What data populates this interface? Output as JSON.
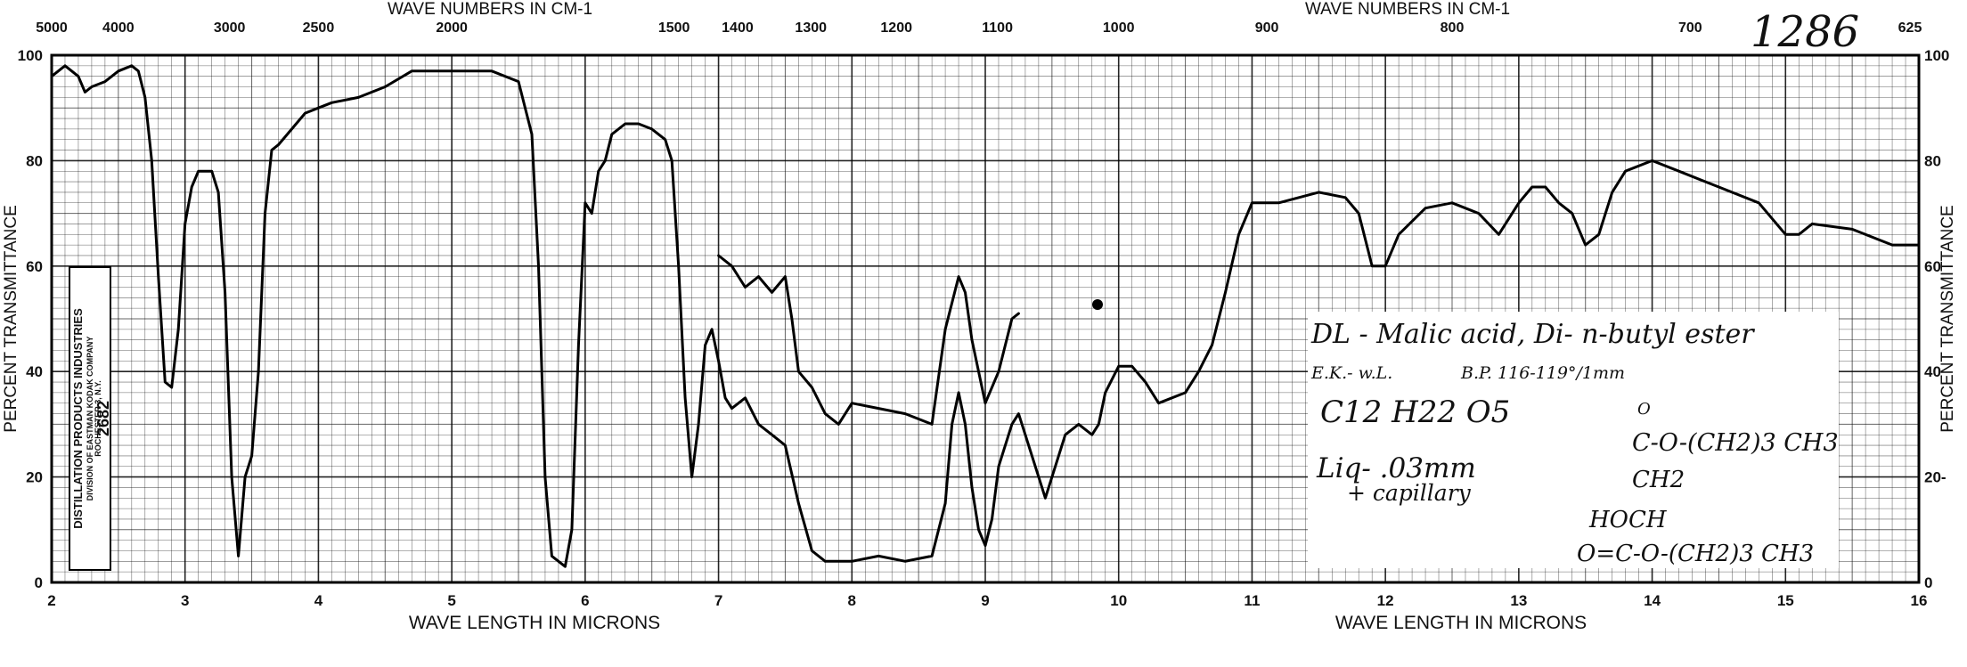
{
  "page": {
    "spectrum_number": "1286"
  },
  "axes": {
    "top_label_left": "WAVE NUMBERS IN CM-1",
    "top_label_right": "WAVE NUMBERS IN CM-1",
    "bottom_label_left": "WAVE LENGTH IN MICRONS",
    "bottom_label_right": "WAVE LENGTH IN MICRONS",
    "left_label": "PERCENT TRANSMITTANCE",
    "right_label": "PERCENT TRANSMITTANCE",
    "wavenumber_ticks": [
      "5000",
      "4000",
      "3000",
      "2500",
      "2000",
      "1500",
      "1400",
      "1300",
      "1200",
      "1100",
      "1000",
      "900",
      "800",
      "700",
      "625"
    ],
    "wavenumber_values": [
      5000,
      4000,
      3000,
      2500,
      2000,
      1500,
      1400,
      1300,
      1200,
      1100,
      1000,
      900,
      800,
      700,
      625
    ],
    "micron_ticks": [
      "2",
      "3",
      "4",
      "5",
      "6",
      "7",
      "8",
      "9",
      "10",
      "11",
      "12",
      "13",
      "14",
      "15",
      "16"
    ],
    "left_y_ticks": [
      "100",
      "80",
      "60",
      "40",
      "20",
      "0"
    ],
    "right_y_ticks": [
      "100",
      "80",
      "60",
      "40",
      "20-",
      "0"
    ]
  },
  "stamp": {
    "company": "DISTILLATION PRODUCTS INDUSTRIES",
    "division": "DIVISION OF EASTMAN KODAK COMPANY",
    "city": "ROCHESTER 3, N.Y.",
    "number": "2682"
  },
  "annotation": {
    "name": "DL - Malic acid, Di- n-butyl ester",
    "source": "E.K.- w.L.",
    "bp": "B.P. 116-119°/1mm",
    "formula": "C12 H22 O5",
    "sample_line1": "Liq- .03mm",
    "sample_line2": "+ capillary",
    "struct_1": "O",
    "struct_2": "C-O-(CH2)3 CH3",
    "struct_3": "CH2",
    "struct_4": "HOCH",
    "struct_5": "O=C-O-(CH2)3 CH3"
  },
  "chart_data": {
    "type": "line",
    "xlabel": "WAVE LENGTH IN MICRONS",
    "ylabel": "PERCENT TRANSMITTANCE",
    "xlim": [
      2,
      16
    ],
    "ylim": [
      0,
      100
    ],
    "grid": true,
    "series": [
      {
        "points": [
          [
            2.0,
            96
          ],
          [
            2.1,
            98
          ],
          [
            2.2,
            96
          ],
          [
            2.25,
            93
          ],
          [
            2.3,
            94
          ],
          [
            2.4,
            95
          ],
          [
            2.5,
            97
          ],
          [
            2.6,
            98
          ],
          [
            2.65,
            97
          ],
          [
            2.7,
            92
          ],
          [
            2.75,
            80
          ],
          [
            2.8,
            58
          ],
          [
            2.85,
            38
          ],
          [
            2.9,
            37
          ],
          [
            2.95,
            48
          ],
          [
            3.0,
            68
          ],
          [
            3.05,
            75
          ],
          [
            3.1,
            78
          ],
          [
            3.2,
            78
          ],
          [
            3.25,
            74
          ],
          [
            3.3,
            55
          ],
          [
            3.35,
            20
          ],
          [
            3.4,
            5
          ],
          [
            3.45,
            20
          ],
          [
            3.5,
            24
          ],
          [
            3.55,
            40
          ],
          [
            3.6,
            70
          ],
          [
            3.65,
            82
          ],
          [
            3.7,
            83
          ],
          [
            3.8,
            86
          ],
          [
            3.9,
            89
          ],
          [
            4.0,
            90
          ],
          [
            4.1,
            91
          ],
          [
            4.3,
            92
          ],
          [
            4.5,
            94
          ],
          [
            4.7,
            97
          ],
          [
            5.0,
            97
          ],
          [
            5.3,
            97
          ],
          [
            5.5,
            95
          ],
          [
            5.6,
            85
          ],
          [
            5.65,
            60
          ],
          [
            5.7,
            20
          ],
          [
            5.75,
            5
          ],
          [
            5.85,
            3
          ],
          [
            5.9,
            10
          ],
          [
            5.95,
            45
          ],
          [
            6.0,
            72
          ],
          [
            6.05,
            70
          ],
          [
            6.1,
            78
          ],
          [
            6.15,
            80
          ],
          [
            6.2,
            85
          ],
          [
            6.3,
            87
          ],
          [
            6.4,
            87
          ],
          [
            6.5,
            86
          ],
          [
            6.6,
            84
          ],
          [
            6.65,
            80
          ],
          [
            6.7,
            60
          ],
          [
            6.75,
            35
          ],
          [
            6.8,
            20
          ],
          [
            6.85,
            30
          ],
          [
            6.9,
            45
          ],
          [
            6.95,
            48
          ],
          [
            7.0,
            42
          ],
          [
            7.05,
            35
          ],
          [
            7.1,
            33
          ],
          [
            7.2,
            35
          ],
          [
            7.3,
            30
          ],
          [
            7.4,
            28
          ],
          [
            7.5,
            26
          ],
          [
            7.6,
            15
          ],
          [
            7.7,
            6
          ],
          [
            7.8,
            4
          ],
          [
            8.0,
            4
          ],
          [
            8.2,
            5
          ],
          [
            8.4,
            4
          ],
          [
            8.6,
            5
          ],
          [
            8.7,
            15
          ],
          [
            8.75,
            30
          ],
          [
            8.8,
            36
          ],
          [
            8.85,
            30
          ],
          [
            8.9,
            18
          ],
          [
            8.95,
            10
          ],
          [
            9.0,
            7
          ],
          [
            9.05,
            12
          ],
          [
            9.1,
            22
          ],
          [
            9.2,
            30
          ],
          [
            9.25,
            32
          ],
          [
            9.3,
            28
          ],
          [
            9.4,
            20
          ],
          [
            9.45,
            16
          ],
          [
            9.5,
            20
          ],
          [
            9.6,
            28
          ],
          [
            9.7,
            30
          ],
          [
            9.8,
            28
          ],
          [
            9.85,
            30
          ],
          [
            9.9,
            36
          ],
          [
            10.0,
            41
          ],
          [
            10.1,
            41
          ],
          [
            10.2,
            38
          ],
          [
            10.3,
            34
          ],
          [
            10.5,
            36
          ],
          [
            10.6,
            40
          ],
          [
            10.7,
            45
          ],
          [
            10.8,
            55
          ],
          [
            10.9,
            66
          ],
          [
            11.0,
            72
          ],
          [
            11.2,
            72
          ],
          [
            11.5,
            74
          ],
          [
            11.7,
            73
          ],
          [
            11.8,
            70
          ],
          [
            11.9,
            60
          ],
          [
            12.0,
            60
          ],
          [
            12.1,
            66
          ],
          [
            12.3,
            71
          ],
          [
            12.5,
            72
          ],
          [
            12.7,
            70
          ],
          [
            12.85,
            66
          ],
          [
            13.0,
            72
          ],
          [
            13.1,
            75
          ],
          [
            13.2,
            75
          ],
          [
            13.3,
            72
          ],
          [
            13.4,
            70
          ],
          [
            13.5,
            64
          ],
          [
            13.6,
            66
          ],
          [
            13.7,
            74
          ],
          [
            13.8,
            78
          ],
          [
            14.0,
            80
          ],
          [
            14.2,
            78
          ],
          [
            14.5,
            75
          ],
          [
            14.8,
            72
          ],
          [
            15.0,
            66
          ],
          [
            15.1,
            66
          ],
          [
            15.2,
            68
          ],
          [
            15.5,
            67
          ],
          [
            15.8,
            64
          ],
          [
            16.0,
            64
          ]
        ]
      },
      {
        "points": [
          [
            7.0,
            62
          ],
          [
            7.1,
            60
          ],
          [
            7.2,
            56
          ],
          [
            7.3,
            58
          ],
          [
            7.4,
            55
          ],
          [
            7.5,
            58
          ],
          [
            7.55,
            50
          ],
          [
            7.6,
            40
          ],
          [
            7.7,
            37
          ],
          [
            7.8,
            32
          ],
          [
            7.9,
            30
          ],
          [
            8.0,
            34
          ],
          [
            8.2,
            33
          ],
          [
            8.4,
            32
          ],
          [
            8.6,
            30
          ],
          [
            8.7,
            48
          ],
          [
            8.8,
            58
          ],
          [
            8.85,
            55
          ],
          [
            8.9,
            46
          ],
          [
            9.0,
            34
          ],
          [
            9.1,
            40
          ],
          [
            9.2,
            50
          ],
          [
            9.25,
            51
          ]
        ]
      }
    ]
  }
}
